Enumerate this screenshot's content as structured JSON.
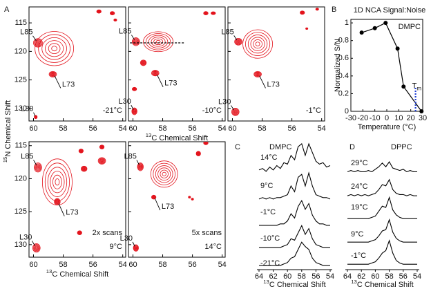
{
  "chart_data": [
    {
      "type": "contour",
      "panel": "A",
      "ylabel_sup": "15",
      "ylabel": "N Chemical Shift",
      "xlim": [
        60.3,
        53.8
      ],
      "ylim": [
        112.2,
        132.2
      ],
      "xticks": [
        60,
        58,
        56,
        54
      ],
      "yticks": [
        115,
        120,
        125,
        130
      ],
      "ytick_labels": true,
      "temperature": "-21°C",
      "color": "#e3121b",
      "peaks": [
        {
          "label": null,
          "x": 58.6,
          "y": 119.5,
          "w": 2.6,
          "h": 6
        },
        {
          "label": "L85",
          "x": 59.7,
          "y": 118.5,
          "w": 0.6,
          "h": 1.5
        },
        {
          "label": "L73",
          "x": 58.7,
          "y": 124,
          "w": 0.5,
          "h": 1.0
        },
        {
          "label": "L30",
          "x": 59.85,
          "y": 131.5,
          "w": 0.2,
          "h": 0.6
        },
        {
          "label": null,
          "x": 55.6,
          "y": 113,
          "w": 0.3,
          "h": 0.6
        },
        {
          "label": null,
          "x": 54.7,
          "y": 113.3,
          "w": 0.3,
          "h": 0.6
        },
        {
          "label": null,
          "x": 54.5,
          "y": 114.5,
          "w": 0.2,
          "h": 0.4
        }
      ]
    },
    {
      "type": "contour",
      "xlabel_sup": "13",
      "xlabel": "C Chemical Shift",
      "xlim": [
        60.3,
        53.8
      ],
      "ylim": [
        112.2,
        132.2
      ],
      "xticks": [
        60,
        58,
        56,
        54
      ],
      "yticks": [
        115,
        120,
        125,
        130
      ],
      "ytick_labels": false,
      "temperature": "-10°C",
      "color": "#e3121b",
      "cut": {
        "y": 118.5,
        "x1": 60.2,
        "x2": 56.5
      },
      "peaks": [
        {
          "label": null,
          "x": 58.3,
          "y": 118.3,
          "w": 2.0,
          "h": 3.5
        },
        {
          "label": "L85",
          "x": 59.8,
          "y": 118.3,
          "w": 0.5,
          "h": 1.4
        },
        {
          "label": "L73",
          "x": 58.5,
          "y": 123.8,
          "w": 0.5,
          "h": 1.0
        },
        {
          "label": null,
          "x": 59.3,
          "y": 122,
          "w": 0.4,
          "h": 1.0
        },
        {
          "label": "L30",
          "x": 59.9,
          "y": 130.5,
          "w": 0.35,
          "h": 1.2
        },
        {
          "label": null,
          "x": 59.9,
          "y": 126.6,
          "w": 0.3,
          "h": 0.6
        },
        {
          "label": null,
          "x": 55.1,
          "y": 113.3,
          "w": 0.3,
          "h": 0.6
        },
        {
          "label": null,
          "x": 54.6,
          "y": 113.3,
          "w": 0.3,
          "h": 0.5
        }
      ]
    },
    {
      "type": "contour",
      "xlim": [
        60.3,
        53.8
      ],
      "ylim": [
        112.2,
        132.2
      ],
      "xticks": [
        60,
        58,
        56,
        54
      ],
      "yticks": [
        115,
        120,
        125,
        130
      ],
      "ytick_labels": false,
      "temperature": "-1°C",
      "color": "#e3121b",
      "peaks": [
        {
          "label": null,
          "x": 58.3,
          "y": 118.7,
          "w": 2.0,
          "h": 5
        },
        {
          "label": "L85",
          "x": 59.6,
          "y": 118.3,
          "w": 0.5,
          "h": 1.2
        },
        {
          "label": "L73",
          "x": 58.3,
          "y": 124,
          "w": 0.5,
          "h": 1.0
        },
        {
          "label": "L30",
          "x": 59.8,
          "y": 130.6,
          "w": 0.5,
          "h": 1.3
        },
        {
          "label": null,
          "x": 55.3,
          "y": 113.2,
          "w": 0.3,
          "h": 0.6
        },
        {
          "label": null,
          "x": 54.3,
          "y": 112.6,
          "w": 0.2,
          "h": 0.4
        },
        {
          "label": null,
          "x": 55.0,
          "y": 116,
          "w": 0.15,
          "h": 0.3
        }
      ]
    },
    {
      "type": "contour",
      "xlabel_sup": "13",
      "xlabel": "C Chemical Shift",
      "xlim": [
        60.3,
        53.8
      ],
      "ylim": [
        114.4,
        131.9
      ],
      "xticks": [
        60,
        58,
        56,
        54
      ],
      "yticks": [
        115,
        120,
        125,
        130
      ],
      "ytick_labels": true,
      "scans": "2x scans",
      "temperature": "9°C",
      "color": "#e3121b",
      "peaks": [
        {
          "label": null,
          "x": 58.4,
          "y": 120.5,
          "w": 2.0,
          "h": 7
        },
        {
          "label": "L85",
          "x": 59.7,
          "y": 118.3,
          "w": 0.5,
          "h": 1.4
        },
        {
          "label": "L73",
          "x": 58.4,
          "y": 123.5,
          "w": 0.4,
          "h": 1.0
        },
        {
          "label": "L30",
          "x": 59.8,
          "y": 130.5,
          "w": 0.5,
          "h": 1.3
        },
        {
          "label": null,
          "x": 56.6,
          "y": 118.5,
          "w": 0.4,
          "h": 0.8
        },
        {
          "label": null,
          "x": 55.4,
          "y": 117.3,
          "w": 0.5,
          "h": 1.0
        },
        {
          "label": null,
          "x": 55.4,
          "y": 115.2,
          "w": 0.3,
          "h": 0.6
        },
        {
          "label": null,
          "x": 56.8,
          "y": 115.8,
          "w": 0.3,
          "h": 0.6
        },
        {
          "label": null,
          "x": 56.9,
          "y": 128.2,
          "w": 0.3,
          "h": 0.6
        }
      ]
    },
    {
      "type": "contour",
      "xlim": [
        60.3,
        53.8
      ],
      "ylim": [
        114.4,
        131.9
      ],
      "xticks": [
        60,
        58,
        56,
        54
      ],
      "yticks": [
        115,
        120,
        125,
        130
      ],
      "ytick_labels": false,
      "scans": "5x scans",
      "temperature": "14°C",
      "color": "#e3121b",
      "peaks": [
        {
          "label": null,
          "x": 57.9,
          "y": 119.3,
          "w": 1.8,
          "h": 4
        },
        {
          "label": "L85",
          "x": 59.5,
          "y": 118.2,
          "w": 0.4,
          "h": 1.2
        },
        {
          "label": "L73",
          "x": 58.6,
          "y": 122.8,
          "w": 0.3,
          "h": 0.6
        },
        {
          "label": "L30",
          "x": 59.8,
          "y": 130.5,
          "w": 0.35,
          "h": 1.0
        },
        {
          "label": null,
          "x": 55.6,
          "y": 116.2,
          "w": 0.3,
          "h": 0.7
        },
        {
          "label": null,
          "x": 55.1,
          "y": 114.6,
          "w": 0.3,
          "h": 0.5
        },
        {
          "label": null,
          "x": 56.2,
          "y": 122.8,
          "w": 0.15,
          "h": 0.3
        },
        {
          "label": null,
          "x": 56.0,
          "y": 123.1,
          "w": 0.15,
          "h": 0.3
        }
      ]
    },
    {
      "type": "line",
      "panel": "B",
      "title": "1D NCA Signal:Noise",
      "annotation": "DMPC",
      "xlabel": "Temperature (°C)",
      "ylabel": "Normalized S/N",
      "x": [
        -21,
        -10,
        -1,
        9,
        14,
        29
      ],
      "values": [
        0.89,
        0.94,
        1.0,
        0.71,
        0.28,
        0.0
      ],
      "color": "#000000",
      "xlim": [
        -30,
        30
      ],
      "ylim": [
        0,
        1.04
      ],
      "xticks": [
        -30,
        -20,
        -10,
        0,
        10,
        20,
        30
      ],
      "yticks": [
        0,
        0.2,
        0.4,
        0.6,
        0.8,
        1
      ],
      "grid": false,
      "tm": {
        "x": 24,
        "top": 0.27,
        "label": "T",
        "sub": "m",
        "color": "#1f3fd6"
      }
    },
    {
      "type": "spectra",
      "panel": "C",
      "title": "DMPC",
      "xlabel_sup": "13",
      "xlabel": "C Chemical Shift",
      "xlim": [
        64,
        54
      ],
      "xticks": [
        64,
        62,
        60,
        58,
        56,
        54
      ],
      "color": "#000000",
      "x": [
        64,
        63.5,
        63,
        62.5,
        62,
        61.5,
        61,
        60.5,
        60,
        59.5,
        59,
        58.5,
        58,
        57.5,
        57,
        56.5,
        56,
        55.5,
        55,
        54.5,
        54
      ],
      "series": [
        {
          "name": "14°C",
          "values": [
            0.1,
            0.15,
            0.05,
            0.2,
            0.1,
            0.25,
            0.15,
            0.35,
            0.3,
            0.6,
            0.45,
            0.9,
            1.0,
            0.6,
            1.0,
            0.7,
            0.4,
            0.3,
            0.35,
            0.2,
            0.25
          ]
        },
        {
          "name": "9°C",
          "values": [
            0.05,
            0.1,
            0.05,
            0.1,
            0.05,
            0.1,
            0.1,
            0.15,
            0.2,
            0.5,
            0.3,
            0.8,
            0.9,
            0.5,
            0.95,
            0.5,
            0.2,
            0.15,
            0.1,
            0.1,
            0.05
          ]
        },
        {
          "name": "-1°C",
          "values": [
            0.05,
            0.05,
            0.05,
            0.05,
            0.05,
            0.05,
            0.1,
            0.1,
            0.2,
            0.45,
            0.3,
            0.7,
            0.9,
            0.6,
            0.8,
            0.4,
            0.2,
            0.1,
            0.1,
            0.05,
            0.05
          ]
        },
        {
          "name": "-10°C",
          "values": [
            0.05,
            0.05,
            0.05,
            0.05,
            0.05,
            0.05,
            0.05,
            0.1,
            0.15,
            0.35,
            0.3,
            0.55,
            0.8,
            0.5,
            0.7,
            0.35,
            0.15,
            0.1,
            0.05,
            0.05,
            0.05
          ]
        },
        {
          "name": "-21°C",
          "values": [
            0.05,
            0.05,
            0.05,
            0.05,
            0.05,
            0.05,
            0.05,
            0.1,
            0.15,
            0.3,
            0.35,
            0.6,
            0.85,
            0.7,
            0.6,
            0.3,
            0.15,
            0.1,
            0.05,
            0.05,
            0.05
          ]
        }
      ]
    },
    {
      "type": "spectra",
      "panel": "D",
      "title": "DPPC",
      "xlabel_sup": "13",
      "xlabel": "C Chemical Shift",
      "xlim": [
        64,
        54
      ],
      "xticks": [
        64,
        62,
        60,
        58,
        56,
        54
      ],
      "color": "#000000",
      "x": [
        64,
        63.5,
        63,
        62.5,
        62,
        61.5,
        61,
        60.5,
        60,
        59.5,
        59,
        58.5,
        58,
        57.5,
        57,
        56.5,
        56,
        55.5,
        55,
        54.5,
        54
      ],
      "series": [
        {
          "name": "29°C",
          "values": [
            0.1,
            0.15,
            0.1,
            0.15,
            0.1,
            0.1,
            0.15,
            0.1,
            0.2,
            0.3,
            0.45,
            0.3,
            0.5,
            0.25,
            0.2,
            0.15,
            0.2,
            0.1,
            0.15,
            0.1,
            0.1
          ]
        },
        {
          "name": "24°C",
          "values": [
            0.05,
            0.1,
            0.05,
            0.1,
            0.05,
            0.1,
            0.05,
            0.1,
            0.15,
            0.3,
            0.5,
            0.45,
            0.7,
            0.3,
            0.15,
            0.1,
            0.1,
            0.05,
            0.1,
            0.05,
            0.05
          ]
        },
        {
          "name": "19°C",
          "values": [
            0.05,
            0.05,
            0.05,
            0.05,
            0.05,
            0.05,
            0.05,
            0.1,
            0.15,
            0.35,
            0.55,
            0.5,
            0.9,
            0.4,
            0.2,
            0.1,
            0.05,
            0.05,
            0.05,
            0.05,
            0.05
          ]
        },
        {
          "name": "9°C",
          "values": [
            0.05,
            0.05,
            0.05,
            0.05,
            0.05,
            0.05,
            0.05,
            0.1,
            0.15,
            0.3,
            0.5,
            0.55,
            0.95,
            0.45,
            0.2,
            0.1,
            0.05,
            0.05,
            0.05,
            0.05,
            0.05
          ]
        },
        {
          "name": "-1°C",
          "values": [
            0.05,
            0.05,
            0.05,
            0.05,
            0.05,
            0.05,
            0.05,
            0.1,
            0.15,
            0.3,
            0.5,
            0.6,
            1.0,
            0.5,
            0.2,
            0.1,
            0.05,
            0.05,
            0.05,
            0.05,
            0.05
          ]
        }
      ]
    }
  ]
}
